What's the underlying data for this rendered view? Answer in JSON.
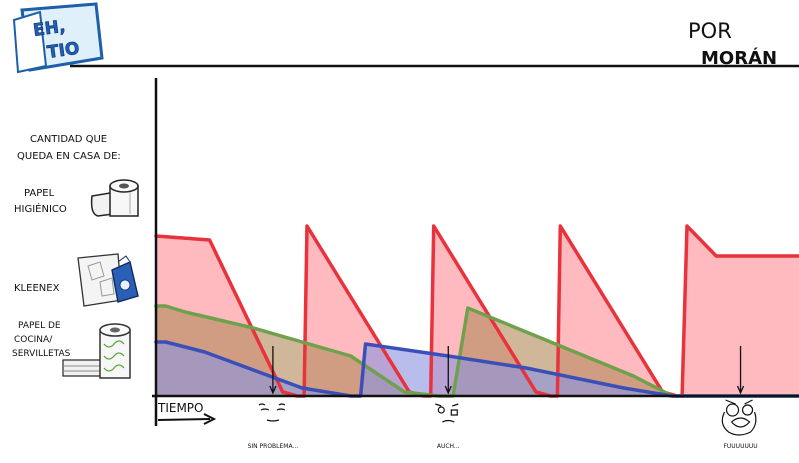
{
  "comic": {
    "logo_top": "EH,",
    "logo_bottom": "TIO",
    "author_prefix": "POR",
    "author_name": "MORÁN"
  },
  "labels": {
    "question_line1": "CANTIDAD QUE",
    "question_line2": "QUEDA EN CASA DE:",
    "paper_line1": "PAPEL",
    "paper_line2": "HIGIÉNICO",
    "kleenex": "KLEENEX",
    "kitchen_line1": "PAPEL DE",
    "kitchen_line2": "COCINA/",
    "kitchen_line3": "SERVILLETAS",
    "xaxis": "TIEMPO"
  },
  "annotations": [
    {
      "text": "SIN PROBLEMA...",
      "face": "calm",
      "x": 1.2
    },
    {
      "text": "AUCH...",
      "face": "worried",
      "x": 3.0
    },
    {
      "text": "FUUUUUUU",
      "face": "rage",
      "x": 6.0
    }
  ],
  "colors": {
    "paper": "#e8323c",
    "paper_fill": "#ff8f97",
    "kleenex": "#6fa14c",
    "kleenex_fill": "#b38a5c",
    "kitchen": "#3b4fb8",
    "kitchen_fill": "#8d94e0"
  },
  "chart_data": {
    "type": "area",
    "xlabel": "TIEMPO",
    "ylabel": "CANTIDAD QUE QUEDA EN CASA DE:",
    "xlim": [
      0,
      6.6
    ],
    "ylim": [
      0,
      1
    ],
    "grid": false,
    "series": [
      {
        "name": "PAPEL HIGIÉNICO",
        "color": "#e8323c",
        "fill": "#ff8f97",
        "x": [
          0,
          0.55,
          1.3,
          1.45,
          1.52,
          1.55,
          2.6,
          2.75,
          2.82,
          2.85,
          3.9,
          4.05,
          4.12,
          4.15,
          5.2,
          5.35,
          5.4,
          5.45,
          5.75,
          6.6
        ],
        "y": [
          0.8,
          0.78,
          0.02,
          0.0,
          0.0,
          0.85,
          0.02,
          0.0,
          0.0,
          0.85,
          0.02,
          0.0,
          0.0,
          0.85,
          0.02,
          0.0,
          0.0,
          0.85,
          0.7,
          0.7
        ]
      },
      {
        "name": "KLEENEX",
        "color": "#6fa14c",
        "fill": "#b38a5c",
        "x": [
          0,
          0.1,
          0.3,
          1.0,
          2.0,
          2.55,
          2.9,
          3.0,
          3.05,
          3.2,
          3.9,
          4.9,
          5.3,
          5.5,
          6.6
        ],
        "y": [
          0.45,
          0.45,
          0.42,
          0.34,
          0.2,
          0.02,
          0.0,
          0.0,
          0.0,
          0.44,
          0.3,
          0.1,
          0.0,
          0.0,
          0.0
        ]
      },
      {
        "name": "PAPEL DE COCINA/ SERVILLETAS",
        "color": "#3b4fb8",
        "fill": "#8d94e0",
        "x": [
          0,
          0.1,
          0.5,
          1.5,
          2.0,
          2.05,
          2.1,
          2.15,
          3.0,
          3.8,
          4.8,
          5.3,
          5.6,
          6.6
        ],
        "y": [
          0.27,
          0.27,
          0.22,
          0.04,
          0.0,
          0.0,
          0.0,
          0.26,
          0.2,
          0.14,
          0.04,
          0.0,
          0.0,
          0.0
        ]
      }
    ],
    "annotations": [
      "SIN PROBLEMA...",
      "AUCH...",
      "FUUUUUUU"
    ]
  }
}
